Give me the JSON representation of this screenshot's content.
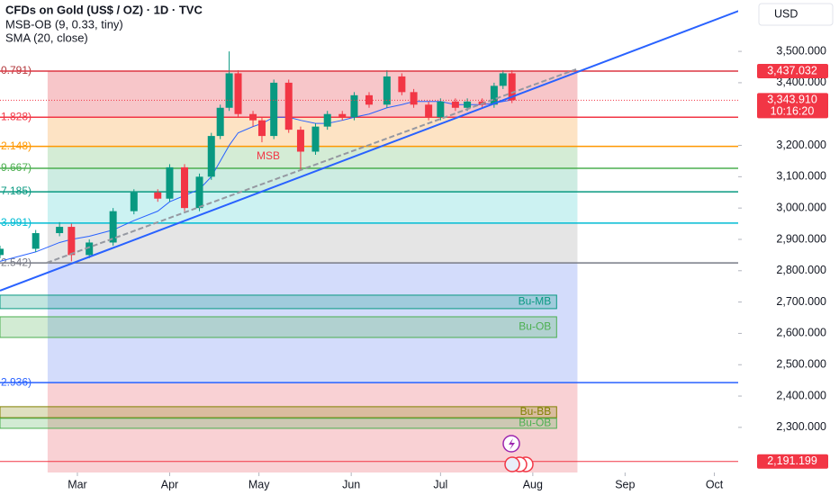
{
  "chart_data": {
    "type": "candlestick",
    "title": "CFDs on Gold (US$ / OZ) · 1D · TVC",
    "indicators": [
      "MSB-OB (9, 0.33, tiny)",
      "SMA (20, close)"
    ],
    "currency": "USD",
    "annotation": "MSB",
    "xlim": [
      34,
      282
    ],
    "xticks": [
      {
        "value": 60,
        "label": "Mar"
      },
      {
        "value": 91,
        "label": "Apr"
      },
      {
        "value": 121,
        "label": "May"
      },
      {
        "value": 152,
        "label": "Jun"
      },
      {
        "value": 182,
        "label": "Jul"
      },
      {
        "value": 213,
        "label": "Aug"
      },
      {
        "value": 244,
        "label": "Sep"
      },
      {
        "value": 274,
        "label": "Oct"
      }
    ],
    "ylim": [
      2156,
      3664
    ],
    "yticks": [
      {
        "value": 3500,
        "label": "3,500.000"
      },
      {
        "value": 3400,
        "label": "3,400.000"
      },
      {
        "value": 3200,
        "label": "3,200.000"
      },
      {
        "value": 3100,
        "label": "3,100.000"
      },
      {
        "value": 3000,
        "label": "3,000.000"
      },
      {
        "value": 2900,
        "label": "2,900.000"
      },
      {
        "value": 2800,
        "label": "2,800.000"
      },
      {
        "value": 2700,
        "label": "2,700.000"
      },
      {
        "value": 2600,
        "label": "2,600.000"
      },
      {
        "value": 2500,
        "label": "2,500.000"
      },
      {
        "value": 2400,
        "label": "2,400.000"
      },
      {
        "value": 2300,
        "label": "2,300.000"
      }
    ],
    "x": [
      34,
      46,
      54,
      58,
      64,
      72,
      79,
      87,
      91,
      96,
      101,
      105,
      108,
      111,
      114,
      119,
      122,
      126,
      131,
      135,
      140,
      144,
      149,
      153,
      158,
      164,
      169,
      173,
      178,
      182,
      187,
      191,
      196,
      200,
      203,
      206
    ],
    "open": [
      2850,
      2870,
      2920,
      2940,
      2850,
      2890,
      2990,
      3050,
      3030,
      3130,
      3000,
      3100,
      3230,
      3320,
      3430,
      3300,
      3280,
      3230,
      3400,
      3250,
      3180,
      3260,
      3300,
      3290,
      3360,
      3330,
      3420,
      3370,
      3330,
      3290,
      3340,
      3320,
      3340,
      3330,
      3390,
      3430
    ],
    "high": [
      2880,
      2930,
      2955,
      2950,
      2900,
      3000,
      3060,
      3060,
      3140,
      3140,
      3110,
      3240,
      3330,
      3500,
      3440,
      3310,
      3290,
      3410,
      3410,
      3260,
      3270,
      3310,
      3310,
      3370,
      3370,
      3440,
      3430,
      3380,
      3340,
      3350,
      3350,
      3350,
      3350,
      3400,
      3440,
      3440
    ],
    "low": [
      2840,
      2860,
      2910,
      2830,
      2840,
      2880,
      2980,
      3020,
      3020,
      2990,
      2990,
      3090,
      3220,
      3310,
      3290,
      3260,
      3210,
      3220,
      3240,
      3120,
      3170,
      3250,
      3280,
      3280,
      3320,
      3320,
      3360,
      3320,
      3280,
      3280,
      3310,
      3310,
      3320,
      3320,
      3380,
      3335
    ],
    "close": [
      2870,
      2920,
      2940,
      2850,
      2890,
      2990,
      3050,
      3030,
      3130,
      3000,
      3100,
      3230,
      3320,
      3430,
      3300,
      3280,
      3230,
      3400,
      3250,
      3180,
      3260,
      3300,
      3290,
      3360,
      3330,
      3420,
      3370,
      3330,
      3290,
      3340,
      3320,
      3340,
      3330,
      3390,
      3430,
      3344
    ],
    "sma": [
      2830,
      2860,
      2890,
      2900,
      2910,
      2930,
      2960,
      2990,
      3020,
      3040,
      3060,
      3100,
      3150,
      3200,
      3240,
      3260,
      3270,
      3290,
      3290,
      3280,
      3270,
      3270,
      3280,
      3290,
      3300,
      3320,
      3330,
      3340,
      3340,
      3340,
      3330,
      3330,
      3330,
      3335,
      3340,
      3345
    ],
    "up_color": "#089981",
    "down_color": "#f23645",
    "sma_color": "#2962ff",
    "fib": {
      "start": 50,
      "end": 228,
      "levels": [
        {
          "label": "0.791)",
          "value": 3437,
          "color": "#b2383c",
          "fill": "#f7c6c9"
        },
        {
          "label": "1.828)",
          "value": 3290,
          "color": "#f23645",
          "fill": "#fde3c4"
        },
        {
          "label": "2.148)",
          "value": 3197,
          "color": "#ff9800",
          "fill": "#d4ecd5"
        },
        {
          "label": "9.667)",
          "value": 3127,
          "color": "#4caf50",
          "fill": "#cdece2"
        },
        {
          "label": "7.185)",
          "value": 3052,
          "color": "#089981",
          "fill": "#ccf2f2"
        },
        {
          "label": "3.991)",
          "value": 2952,
          "color": "#00bcd4",
          "fill": "#e5e5e5"
        },
        {
          "label": "2.542)",
          "value": 2825,
          "color": "#787b86",
          "fill": "#d3dcfb"
        },
        {
          "label": "2.936)",
          "value": 2443,
          "color": "#2962ff",
          "fill": "#f9d1d4"
        }
      ]
    },
    "zones": [
      {
        "label": "Bu-MB",
        "top": 2722,
        "bottom": 2679,
        "end": 221,
        "color": "#089981"
      },
      {
        "label": "Bu-OB",
        "top": 2653,
        "bottom": 2587,
        "end": 221,
        "color": "#4caf50"
      },
      {
        "label": "Bu-BB",
        "top": 2366,
        "bottom": 2331,
        "end": 221,
        "color": "#808000"
      },
      {
        "label": "Bu-OB",
        "top": 2329,
        "bottom": 2297,
        "end": 221,
        "color": "#4caf50"
      }
    ],
    "price_labels": [
      {
        "value": 3437.032,
        "label": "3,437.032"
      },
      {
        "value": 3343.91,
        "label": "3,343.910",
        "sub": "10:16:20"
      },
      {
        "value": 2191.199,
        "label": "2,191.199"
      }
    ]
  }
}
